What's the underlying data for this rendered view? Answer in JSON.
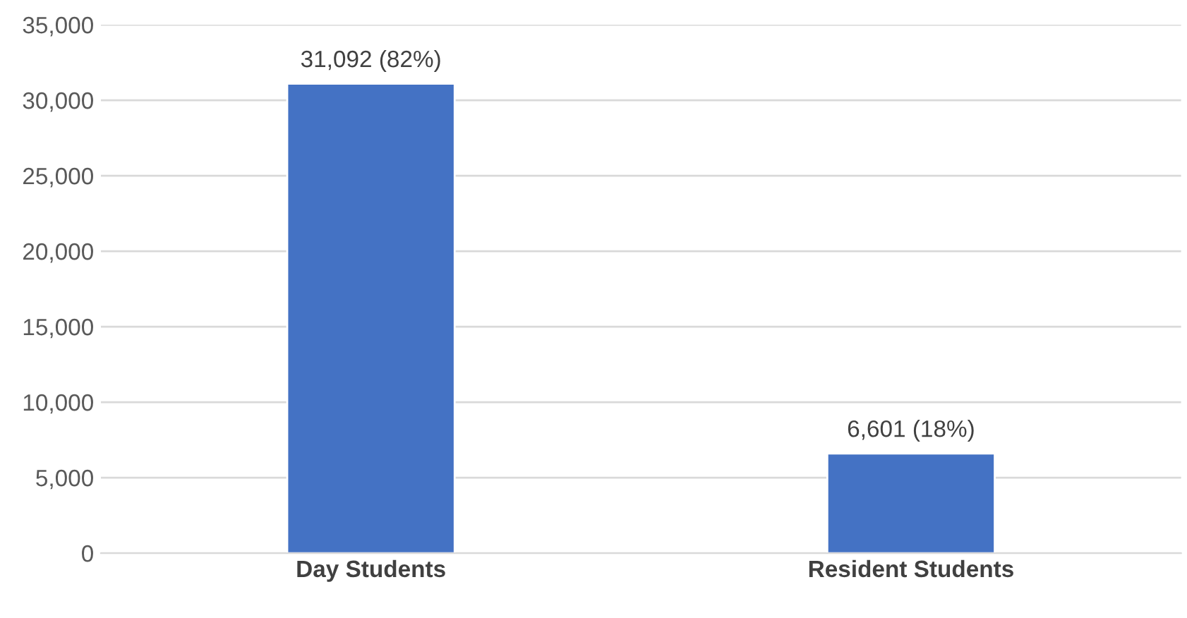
{
  "chart_data": {
    "type": "bar",
    "categories": [
      "Day Students",
      "Resident Students"
    ],
    "values": [
      31092,
      6601
    ],
    "color": "#4472c4",
    "value_labels": [
      "31,092 (82%)",
      "6,601 (18%)"
    ],
    "ylim": [
      0,
      35000
    ],
    "yticks": [
      {
        "value": 0,
        "label": "0"
      },
      {
        "value": 5000,
        "label": "5,000"
      },
      {
        "value": 10000,
        "label": "10,000"
      },
      {
        "value": 15000,
        "label": "15,000"
      },
      {
        "value": 20000,
        "label": "20,000"
      },
      {
        "value": 25000,
        "label": "25,000"
      },
      {
        "value": 30000,
        "label": "30,000"
      },
      {
        "value": 35000,
        "label": "35,000"
      }
    ],
    "grid": "y"
  }
}
